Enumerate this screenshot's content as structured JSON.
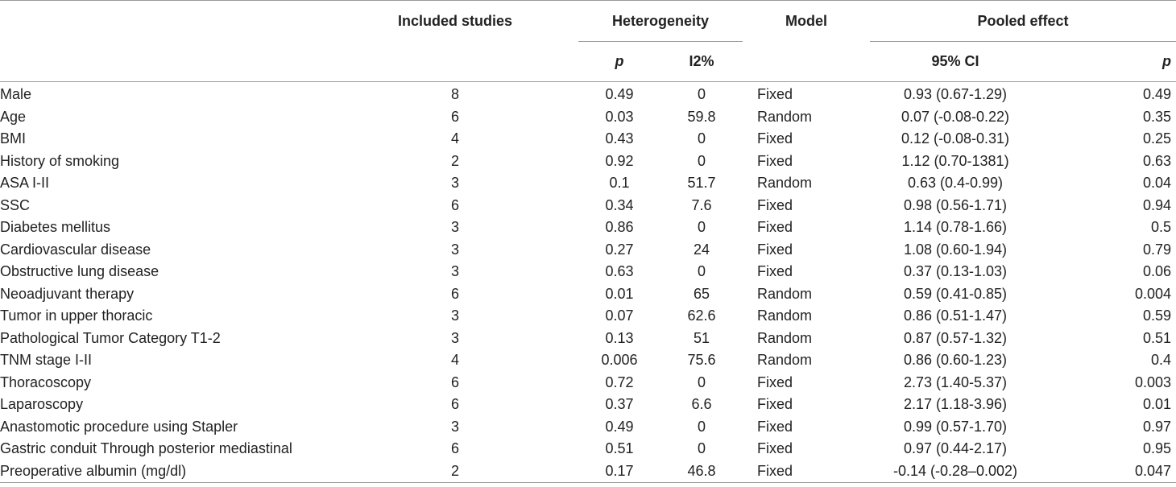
{
  "header": {
    "included_studies": "Included studies",
    "heterogeneity": "Heterogeneity",
    "model": "Model",
    "pooled_effect": "Pooled effect",
    "het_p": "p",
    "het_i2": "I2%",
    "ci": "95% CI",
    "pooled_p": "p"
  },
  "rows": [
    {
      "variable": "Male",
      "studies": "8",
      "het_p": "0.49",
      "i2": "0",
      "model": "Fixed",
      "ci": "0.93 (0.67-1.29)",
      "p": "0.49"
    },
    {
      "variable": "Age",
      "studies": "6",
      "het_p": "0.03",
      "i2": "59.8",
      "model": "Random",
      "ci": "0.07 (-0.08-0.22)",
      "p": "0.35"
    },
    {
      "variable": "BMI",
      "studies": "4",
      "het_p": "0.43",
      "i2": "0",
      "model": "Fixed",
      "ci": "0.12 (-0.08-0.31)",
      "p": "0.25"
    },
    {
      "variable": "History of smoking",
      "studies": "2",
      "het_p": "0.92",
      "i2": "0",
      "model": "Fixed",
      "ci": "1.12 (0.70-1381)",
      "p": "0.63"
    },
    {
      "variable": "ASA I-II",
      "studies": "3",
      "het_p": "0.1",
      "i2": "51.7",
      "model": "Random",
      "ci": "0.63 (0.4-0.99)",
      "p": "0.04"
    },
    {
      "variable": "SSC",
      "studies": "6",
      "het_p": "0.34",
      "i2": "7.6",
      "model": "Fixed",
      "ci": "0.98 (0.56-1.71)",
      "p": "0.94"
    },
    {
      "variable": "Diabetes mellitus",
      "studies": "3",
      "het_p": "0.86",
      "i2": "0",
      "model": "Fixed",
      "ci": "1.14 (0.78-1.66)",
      "p": "0.5"
    },
    {
      "variable": "Cardiovascular disease",
      "studies": "3",
      "het_p": "0.27",
      "i2": "24",
      "model": "Fixed",
      "ci": "1.08 (0.60-1.94)",
      "p": "0.79"
    },
    {
      "variable": "Obstructive lung disease",
      "studies": "3",
      "het_p": "0.63",
      "i2": "0",
      "model": "Fixed",
      "ci": "0.37 (0.13-1.03)",
      "p": "0.06"
    },
    {
      "variable": "Neoadjuvant therapy",
      "studies": "6",
      "het_p": "0.01",
      "i2": "65",
      "model": "Random",
      "ci": "0.59 (0.41-0.85)",
      "p": "0.004"
    },
    {
      "variable": "Tumor in upper thoracic",
      "studies": "3",
      "het_p": "0.07",
      "i2": "62.6",
      "model": "Random",
      "ci": "0.86 (0.51-1.47)",
      "p": "0.59"
    },
    {
      "variable": "Pathological Tumor Category T1-2",
      "studies": "3",
      "het_p": "0.13",
      "i2": "51",
      "model": "Random",
      "ci": "0.87 (0.57-1.32)",
      "p": "0.51"
    },
    {
      "variable": "TNM stage I-II",
      "studies": "4",
      "het_p": "0.006",
      "i2": "75.6",
      "model": "Random",
      "ci": "0.86 (0.60-1.23)",
      "p": "0.4"
    },
    {
      "variable": "Thoracoscopy",
      "studies": "6",
      "het_p": "0.72",
      "i2": "0",
      "model": "Fixed",
      "ci": "2.73 (1.40-5.37)",
      "p": "0.003"
    },
    {
      "variable": "Laparoscopy",
      "studies": "6",
      "het_p": "0.37",
      "i2": "6.6",
      "model": "Fixed",
      "ci": "2.17 (1.18-3.96)",
      "p": "0.01"
    },
    {
      "variable": "Anastomotic procedure using Stapler",
      "studies": "3",
      "het_p": "0.49",
      "i2": "0",
      "model": "Fixed",
      "ci": "0.99 (0.57-1.70)",
      "p": "0.97"
    },
    {
      "variable": "Gastric conduit Through posterior mediastinal",
      "studies": "6",
      "het_p": "0.51",
      "i2": "0",
      "model": "Fixed",
      "ci": "0.97 (0.44-2.17)",
      "p": "0.95"
    },
    {
      "variable": "Preoperative albumin (mg/dl)",
      "studies": "2",
      "het_p": "0.17",
      "i2": "46.8",
      "model": "Fixed",
      "ci": "-0.14 (-0.28–0.002)",
      "p": "0.047"
    }
  ]
}
